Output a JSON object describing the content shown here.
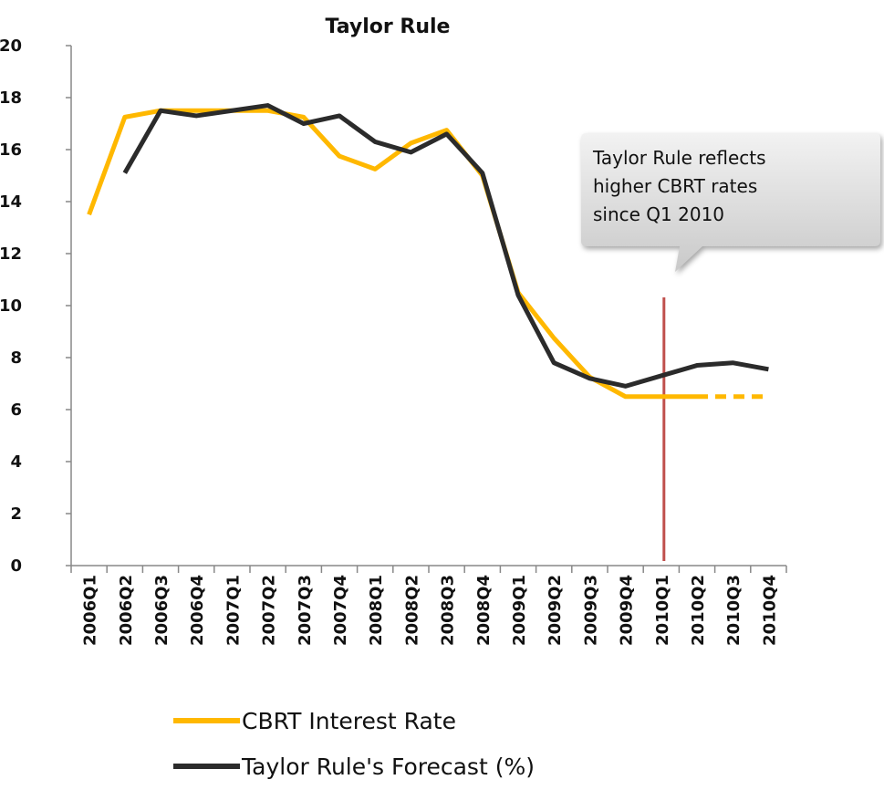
{
  "chart_data": {
    "type": "line",
    "title": "Taylor Rule",
    "categories": [
      "2006Q1",
      "2006Q2",
      "2006Q3",
      "2006Q4",
      "2007Q1",
      "2007Q2",
      "2007Q3",
      "2007Q4",
      "2008Q1",
      "2008Q2",
      "2008Q3",
      "2008Q4",
      "2009Q1",
      "2009Q2",
      "2009Q3",
      "2009Q4",
      "2010Q1",
      "2010Q2",
      "2010Q3",
      "2010Q4"
    ],
    "series": [
      {
        "name": "CBRT Interest Rate",
        "color": "#ffb800",
        "dashed_from": "2010Q2",
        "values": [
          13.5,
          17.25,
          17.5,
          17.5,
          17.5,
          17.5,
          17.25,
          15.75,
          15.25,
          16.25,
          16.75,
          15,
          10.5,
          8.75,
          7.25,
          6.5,
          6.5,
          6.5,
          6.5,
          6.5
        ]
      },
      {
        "name": "Taylor Rule's Forecast (%)",
        "color": "#2b2b2b",
        "values": [
          null,
          15.1,
          17.5,
          17.3,
          17.5,
          17.7,
          17.0,
          17.3,
          16.3,
          15.9,
          16.6,
          15.1,
          10.4,
          7.8,
          7.2,
          6.9,
          7.3,
          7.7,
          7.8,
          7.55
        ]
      }
    ],
    "ylim": [
      0,
      20
    ],
    "yticks": [
      0,
      2,
      4,
      6,
      8,
      10,
      12,
      14,
      16,
      18,
      20
    ],
    "annotation": {
      "lines": [
        "Taylor Rule reflects",
        "higher CBRT rates",
        "since Q1 2010"
      ],
      "category": "2010Q1",
      "color": "#c0504d"
    },
    "legend": "bottom"
  }
}
